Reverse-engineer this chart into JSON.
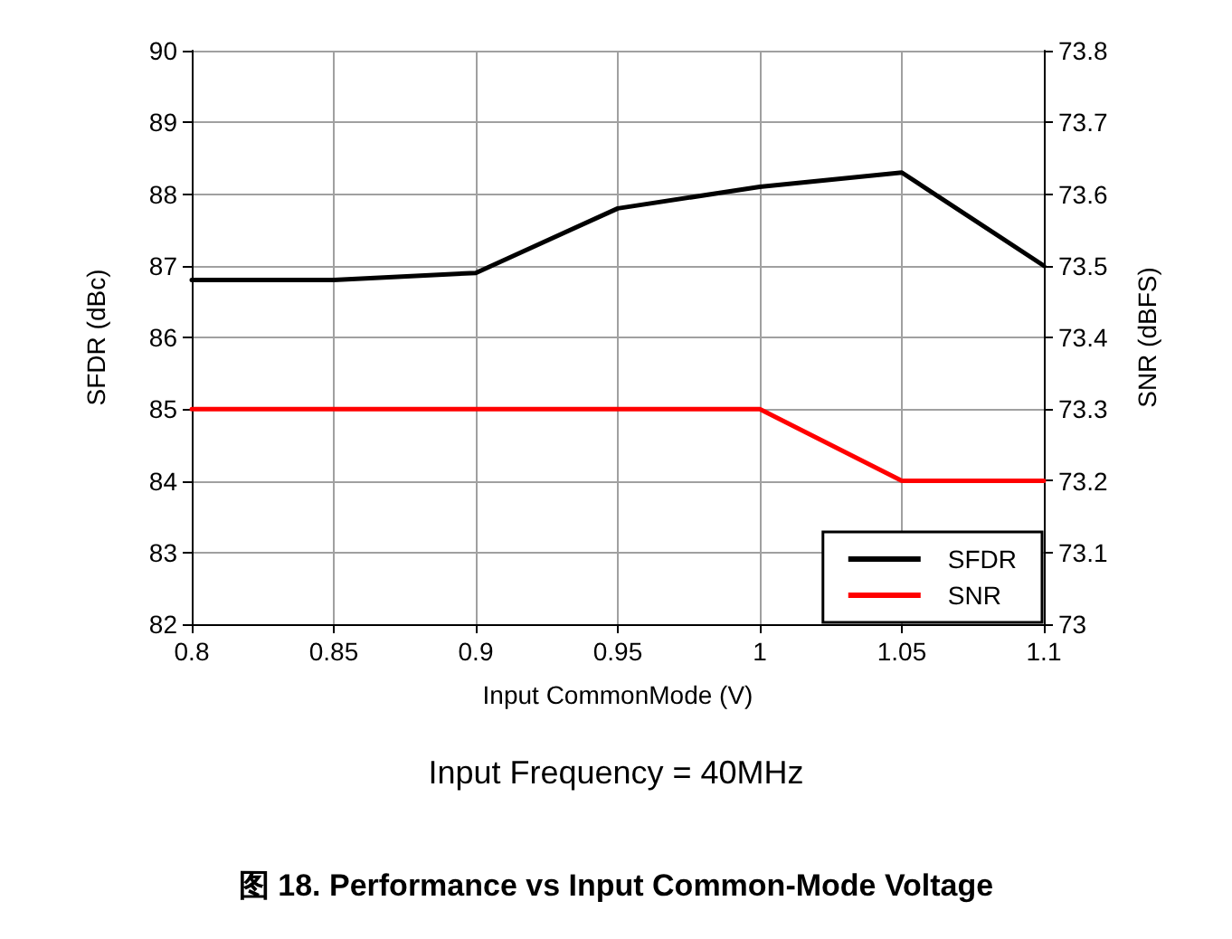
{
  "chart_data": {
    "type": "line",
    "title": "图 18. Performance vs Input Common-Mode Voltage",
    "xlabel": "Input CommonMode (V)",
    "ylabel": "SFDR (dBc)",
    "y2label": "SNR (dBFS)",
    "annotations": [
      "Input Frequency = 40MHz"
    ],
    "x": [
      0.8,
      0.85,
      0.9,
      0.95,
      1.0,
      1.05,
      1.1
    ],
    "series": [
      {
        "name": "SFDR",
        "color": "#000000",
        "values": [
          86.8,
          86.8,
          86.9,
          87.8,
          88.1,
          88.3,
          87.0
        ]
      },
      {
        "name": "SNR",
        "color": "#ff0000",
        "axis": "y2",
        "values": [
          73.3,
          73.3,
          73.3,
          73.3,
          73.3,
          73.2,
          73.2
        ]
      }
    ],
    "xlim": [
      0.8,
      1.1
    ],
    "xticks": [
      0.8,
      0.85,
      0.9,
      0.95,
      1,
      1.05,
      1.1
    ],
    "ylim": [
      82,
      90
    ],
    "yticks": [
      82,
      83,
      84,
      85,
      86,
      87,
      88,
      89,
      90
    ],
    "y2lim": [
      73,
      73.8
    ],
    "y2ticks": [
      73,
      73.1,
      73.2,
      73.3,
      73.4,
      73.5,
      73.6,
      73.7,
      73.8
    ],
    "grid": true,
    "legend": "bottom right",
    "marker": "none",
    "line_style": "solid"
  }
}
